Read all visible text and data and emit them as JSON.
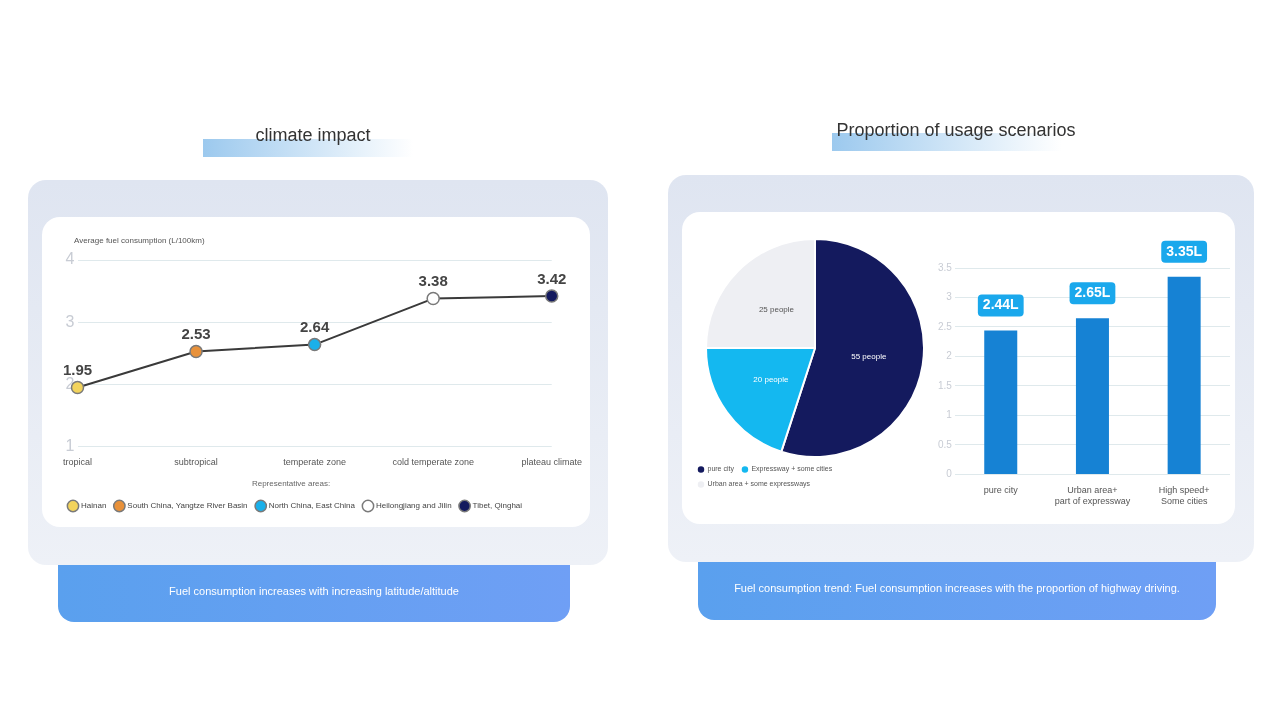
{
  "chart_data": [
    {
      "type": "line",
      "title": "climate impact",
      "ylabel": "Average fuel consumption (L/100km)",
      "legend_title": "Representative areas:",
      "categories": [
        "tropical",
        "subtropical",
        "temperate zone",
        "cold temperate zone",
        "plateau climate"
      ],
      "series": [
        {
          "type": "line",
          "color": "#3a3a3a",
          "values": [
            1.95,
            2.53,
            2.64,
            3.38,
            3.42
          ],
          "value_labels": [
            "1.95",
            "2.53",
            "2.64",
            "3.38",
            "3.42"
          ]
        },
        {
          "type": "scatter",
          "name": "Hainan",
          "color": "#f2d35c",
          "x": [
            "tropical"
          ],
          "values": [
            1.95
          ]
        },
        {
          "type": "scatter",
          "name": "South China, Yangtze River Basin",
          "color": "#e8913a",
          "x": [
            "subtropical"
          ],
          "values": [
            2.53
          ]
        },
        {
          "type": "scatter",
          "name": "North China, East China",
          "color": "#1ab0ea",
          "x": [
            "temperate zone"
          ],
          "values": [
            2.64
          ]
        },
        {
          "type": "scatter",
          "name": "Heilongjiang and Jilin",
          "color": "#ffffff",
          "x": [
            "cold temperate zone"
          ],
          "values": [
            3.38
          ]
        },
        {
          "type": "scatter",
          "name": "Tibet, Qinghai",
          "color": "#141a5e",
          "x": [
            "plateau climate"
          ],
          "values": [
            3.42
          ]
        }
      ],
      "ylim": [
        1,
        4
      ],
      "yticks": [
        1,
        2,
        3,
        4
      ],
      "grid": "y",
      "legend": "bottom",
      "marker": "circle",
      "annotations": [
        "Fuel consumption increases with increasing latitude/altitude"
      ]
    },
    {
      "type": "pie",
      "title": "Proportion of usage scenarios",
      "categories": [
        "pure city",
        "Expressway + some cities",
        "Urban area + some expressways"
      ],
      "values": [
        55,
        20,
        25
      ],
      "colors": [
        "#141a5e",
        "#14b8f0",
        "#eeeff3"
      ],
      "value_labels": [
        "55 people",
        "20 people",
        "25 people"
      ],
      "legend": "bottom",
      "annotations": [
        "Fuel consumption trend: Fuel consumption increases with the proportion of highway driving."
      ]
    },
    {
      "type": "bar",
      "categories": [
        "pure city",
        "Urban area+\npart of expressway",
        "High speed+\nSome cities"
      ],
      "values": [
        2.44,
        2.65,
        3.35
      ],
      "color": "#1682d4",
      "value_labels": [
        "2.44L",
        "2.65L",
        "3.35L"
      ],
      "ylim": [
        0,
        3.5
      ],
      "yticks": [
        0,
        0.5,
        1,
        1.5,
        2,
        2.5,
        3,
        3.5
      ],
      "grid": "y"
    }
  ]
}
